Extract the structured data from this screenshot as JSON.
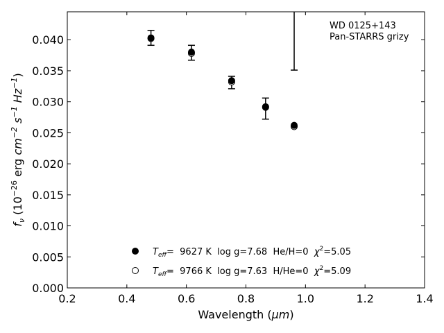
{
  "chart_data": {
    "type": "scatter",
    "xlabel": "Wavelength (",
    "xlabel_unit": "μm",
    "xlabel_close": ")",
    "ylabel_parts": {
      "f": "f",
      "nu": "ν",
      "open": " (10",
      "exp26": "−26",
      "erg": " erg ",
      "cm": "cm",
      "exp2": "−2",
      "s": "s",
      "exp1a": "−1",
      "hz": "Hz",
      "exp1b": "−1",
      "close": ")"
    },
    "xlim": [
      0.2,
      1.4
    ],
    "ylim": [
      0.0,
      0.0445
    ],
    "x_ticks": [
      0.2,
      0.4,
      0.6,
      0.8,
      1.0,
      1.2,
      1.4
    ],
    "x_tick_labels": [
      "0.2",
      "0.4",
      "0.6",
      "0.8",
      "1.0",
      "1.2",
      "1.4"
    ],
    "y_ticks": [
      0.0,
      0.005,
      0.01,
      0.015,
      0.02,
      0.025,
      0.03,
      0.035,
      0.04
    ],
    "y_tick_labels": [
      "0.000",
      "0.005",
      "0.010",
      "0.015",
      "0.020",
      "0.025",
      "0.030",
      "0.035",
      "0.040"
    ],
    "annotation": [
      "WD 0125+143",
      "Pan-STARRS grizy"
    ],
    "observed": {
      "x": [
        0.481,
        0.617,
        0.752,
        0.866,
        0.962
      ],
      "y": [
        0.0403,
        0.0379,
        0.0331,
        0.0289,
        null
      ],
      "err": [
        0.0012,
        0.0012,
        0.001,
        0.0017,
        null
      ],
      "upper_limit": {
        "x": 0.962,
        "y_low": 0.0351,
        "y_high": 0.0445
      }
    },
    "series": [
      {
        "name_parts": [
          "T",
          "eff",
          "=  9627 K  log g=7.68  He/H=0  ",
          "χ",
          "2",
          "=5.05"
        ],
        "marker": "filled-circle",
        "x": [
          0.481,
          0.617,
          0.752,
          0.866,
          0.962
        ],
        "y": [
          0.0403,
          0.038,
          0.0334,
          0.0292,
          0.0262
        ]
      },
      {
        "name_parts": [
          "T",
          "eff",
          "=  9766 K  log g=7.63  H/He=0  ",
          "χ",
          "2",
          "=5.09"
        ],
        "marker": "open-circle",
        "x": [
          0.481,
          0.617,
          0.752,
          0.866,
          0.962
        ],
        "y": [
          0.0402,
          0.0378,
          0.0332,
          0.0291,
          0.026
        ]
      }
    ],
    "legend_position": "lower-center",
    "grid": false
  }
}
